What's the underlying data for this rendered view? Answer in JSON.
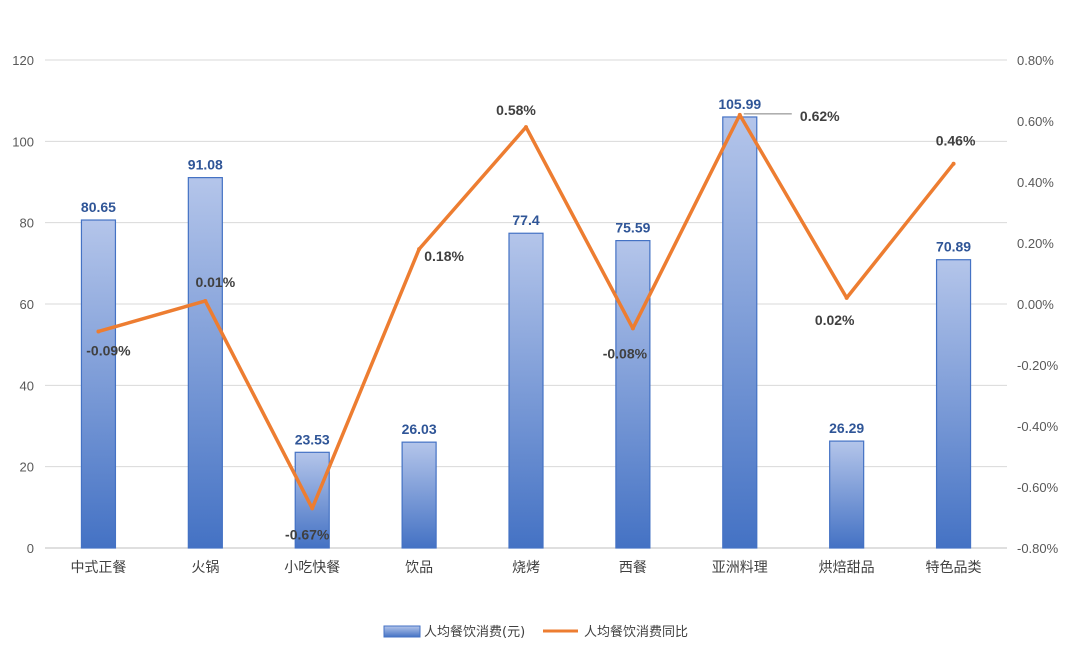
{
  "chart_data": {
    "type": "bar",
    "categories": [
      "中式正餐",
      "火锅",
      "小吃快餐",
      "饮品",
      "烧烤",
      "西餐",
      "亚洲料理",
      "烘焙甜品",
      "特色品类"
    ],
    "series": [
      {
        "name": "人均餐饮消费(元)",
        "type": "bar",
        "axis": "left",
        "values": [
          80.65,
          91.08,
          23.53,
          26.03,
          77.4,
          75.59,
          105.99,
          26.29,
          70.89
        ],
        "labels": [
          "80.65",
          "91.08",
          "23.53",
          "26.03",
          "77.4",
          "75.59",
          "105.99",
          "26.29",
          "70.89"
        ],
        "color": "#4472c4"
      },
      {
        "name": "人均餐饮消费同比",
        "type": "line",
        "axis": "right",
        "values": [
          -0.09,
          0.01,
          -0.67,
          0.18,
          0.58,
          -0.08,
          0.62,
          0.02,
          0.46
        ],
        "labels": [
          "-0.09%",
          "0.01%",
          "-0.67%",
          "0.18%",
          "0.58%",
          "-0.08%",
          "0.62%",
          "0.02%",
          "0.46%"
        ],
        "color": "#ed7d31"
      }
    ],
    "y_left": {
      "ylim": [
        0,
        120
      ],
      "ticks": [
        "0",
        "20",
        "40",
        "60",
        "80",
        "100",
        "120"
      ]
    },
    "y_right": {
      "ylim": [
        -0.8,
        0.8
      ],
      "ticks": [
        "-0.80%",
        "-0.60%",
        "-0.40%",
        "-0.20%",
        "0.00%",
        "0.20%",
        "0.40%",
        "0.60%",
        "0.80%"
      ]
    },
    "grid": true,
    "legend_position": "bottom-center"
  },
  "legend": {
    "bar_label": "人均餐饮消费(元)",
    "line_label": "人均餐饮消费同比"
  }
}
